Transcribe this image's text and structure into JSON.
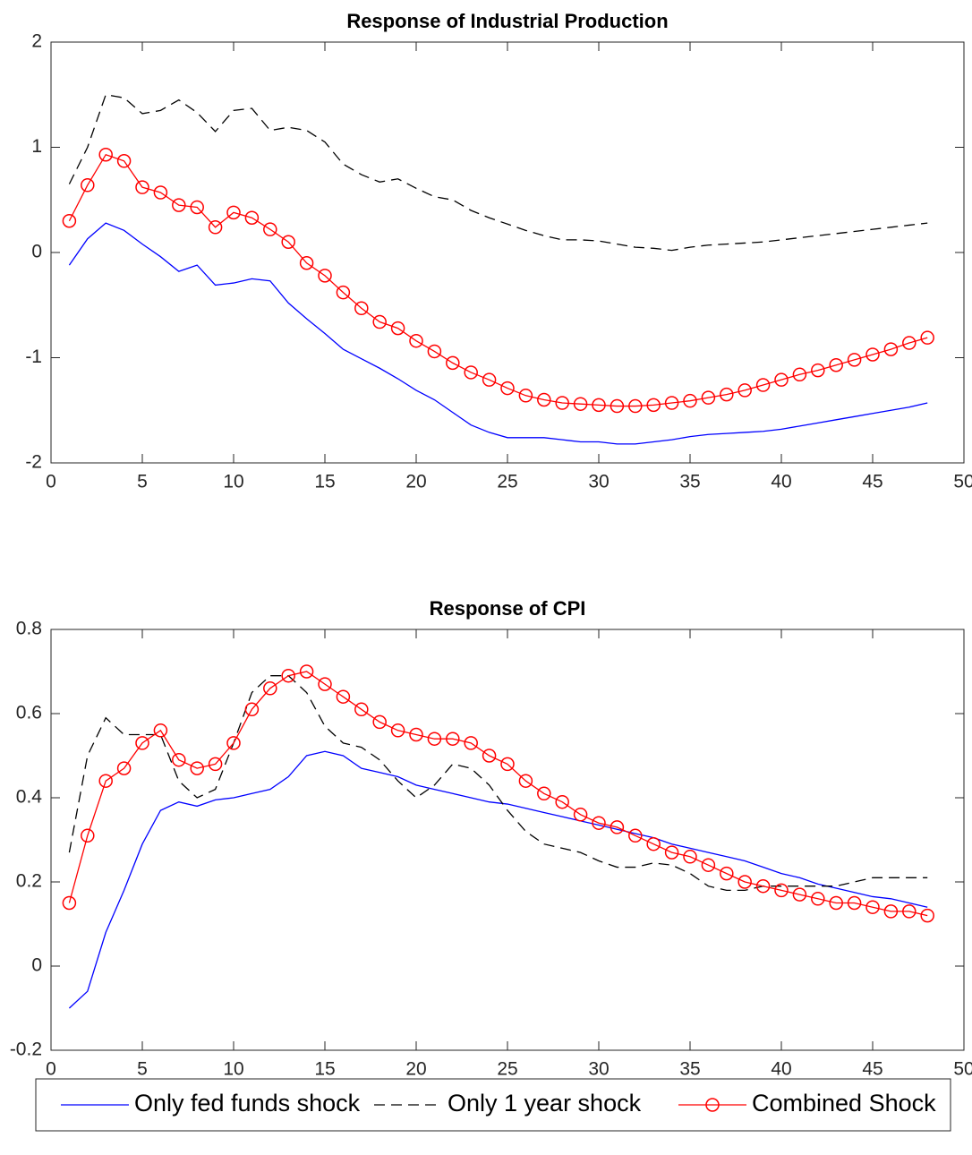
{
  "chart_data": [
    {
      "type": "line",
      "title": "Response of Industrial Production",
      "x": [
        1,
        2,
        3,
        4,
        5,
        6,
        7,
        8,
        9,
        10,
        11,
        12,
        13,
        14,
        15,
        16,
        17,
        18,
        19,
        20,
        21,
        22,
        23,
        24,
        25,
        26,
        27,
        28,
        29,
        30,
        31,
        32,
        33,
        34,
        35,
        36,
        37,
        38,
        39,
        40,
        41,
        42,
        43,
        44,
        45,
        46,
        47,
        48
      ],
      "xlim": [
        0,
        50
      ],
      "xticks": [
        0,
        5,
        10,
        15,
        20,
        25,
        30,
        35,
        40,
        45,
        50
      ],
      "ylim": [
        -2,
        2
      ],
      "yticks": [
        -2,
        -1,
        0,
        1,
        2
      ],
      "series": [
        {
          "name": "Only fed funds shock",
          "color": "#0000ff",
          "line_style": "solid",
          "marker": "none",
          "values": [
            -0.12,
            0.13,
            0.28,
            0.21,
            0.08,
            -0.04,
            -0.18,
            -0.12,
            -0.31,
            -0.29,
            -0.25,
            -0.27,
            -0.48,
            -0.63,
            -0.77,
            -0.92,
            -1.01,
            -1.1,
            -1.2,
            -1.31,
            -1.4,
            -1.52,
            -1.64,
            -1.71,
            -1.76,
            -1.76,
            -1.76,
            -1.78,
            -1.8,
            -1.8,
            -1.82,
            -1.82,
            -1.8,
            -1.78,
            -1.75,
            -1.73,
            -1.72,
            -1.71,
            -1.7,
            -1.68,
            -1.65,
            -1.62,
            -1.59,
            -1.56,
            -1.53,
            -1.5,
            -1.47,
            -1.43
          ]
        },
        {
          "name": "Only 1 year shock",
          "color": "#000000",
          "line_style": "dashed",
          "marker": "none",
          "values": [
            0.65,
            1.0,
            1.5,
            1.47,
            1.32,
            1.35,
            1.45,
            1.33,
            1.15,
            1.35,
            1.37,
            1.16,
            1.19,
            1.16,
            1.05,
            0.84,
            0.74,
            0.67,
            0.7,
            0.61,
            0.53,
            0.5,
            0.4,
            0.33,
            0.27,
            0.21,
            0.16,
            0.12,
            0.12,
            0.11,
            0.08,
            0.05,
            0.04,
            0.02,
            0.05,
            0.07,
            0.08,
            0.09,
            0.1,
            0.12,
            0.14,
            0.16,
            0.18,
            0.2,
            0.22,
            0.24,
            0.26,
            0.28
          ]
        },
        {
          "name": "Combined Shock",
          "color": "#ff0000",
          "line_style": "solid",
          "marker": "circle",
          "values": [
            0.3,
            0.64,
            0.93,
            0.87,
            0.62,
            0.57,
            0.45,
            0.43,
            0.24,
            0.38,
            0.33,
            0.22,
            0.1,
            -0.1,
            -0.22,
            -0.38,
            -0.53,
            -0.66,
            -0.72,
            -0.84,
            -0.94,
            -1.05,
            -1.14,
            -1.21,
            -1.29,
            -1.36,
            -1.4,
            -1.43,
            -1.44,
            -1.45,
            -1.46,
            -1.46,
            -1.45,
            -1.43,
            -1.41,
            -1.38,
            -1.35,
            -1.31,
            -1.26,
            -1.21,
            -1.16,
            -1.12,
            -1.07,
            -1.02,
            -0.97,
            -0.92,
            -0.86,
            -0.81
          ]
        }
      ]
    },
    {
      "type": "line",
      "title": "Response of CPI",
      "x": [
        1,
        2,
        3,
        4,
        5,
        6,
        7,
        8,
        9,
        10,
        11,
        12,
        13,
        14,
        15,
        16,
        17,
        18,
        19,
        20,
        21,
        22,
        23,
        24,
        25,
        26,
        27,
        28,
        29,
        30,
        31,
        32,
        33,
        34,
        35,
        36,
        37,
        38,
        39,
        40,
        41,
        42,
        43,
        44,
        45,
        46,
        47,
        48
      ],
      "xlim": [
        0,
        50
      ],
      "xticks": [
        0,
        5,
        10,
        15,
        20,
        25,
        30,
        35,
        40,
        45,
        50
      ],
      "ylim": [
        -0.2,
        0.8
      ],
      "yticks": [
        -0.2,
        0,
        0.2,
        0.4,
        0.6,
        0.8
      ],
      "series": [
        {
          "name": "Only fed funds shock",
          "color": "#0000ff",
          "line_style": "solid",
          "marker": "none",
          "values": [
            -0.1,
            -0.06,
            0.08,
            0.18,
            0.29,
            0.37,
            0.39,
            0.38,
            0.395,
            0.4,
            0.41,
            0.42,
            0.45,
            0.5,
            0.51,
            0.5,
            0.47,
            0.46,
            0.45,
            0.43,
            0.42,
            0.41,
            0.4,
            0.39,
            0.385,
            0.375,
            0.365,
            0.355,
            0.345,
            0.335,
            0.325,
            0.315,
            0.305,
            0.29,
            0.28,
            0.27,
            0.26,
            0.25,
            0.235,
            0.22,
            0.21,
            0.195,
            0.185,
            0.175,
            0.165,
            0.16,
            0.15,
            0.14
          ]
        },
        {
          "name": "Only 1 year shock",
          "color": "#000000",
          "line_style": "dashed",
          "marker": "none",
          "values": [
            0.27,
            0.5,
            0.59,
            0.55,
            0.55,
            0.55,
            0.44,
            0.4,
            0.42,
            0.53,
            0.65,
            0.69,
            0.69,
            0.65,
            0.57,
            0.53,
            0.52,
            0.49,
            0.44,
            0.4,
            0.43,
            0.48,
            0.47,
            0.43,
            0.37,
            0.32,
            0.29,
            0.28,
            0.27,
            0.25,
            0.235,
            0.235,
            0.245,
            0.24,
            0.22,
            0.19,
            0.18,
            0.18,
            0.19,
            0.19,
            0.19,
            0.19,
            0.19,
            0.2,
            0.21,
            0.21,
            0.21,
            0.21
          ]
        },
        {
          "name": "Combined Shock",
          "color": "#ff0000",
          "line_style": "solid",
          "marker": "circle",
          "values": [
            0.15,
            0.31,
            0.44,
            0.47,
            0.53,
            0.56,
            0.49,
            0.47,
            0.48,
            0.53,
            0.61,
            0.66,
            0.69,
            0.7,
            0.67,
            0.64,
            0.61,
            0.58,
            0.56,
            0.55,
            0.54,
            0.54,
            0.53,
            0.5,
            0.48,
            0.44,
            0.41,
            0.39,
            0.36,
            0.34,
            0.33,
            0.31,
            0.29,
            0.27,
            0.26,
            0.24,
            0.22,
            0.2,
            0.19,
            0.18,
            0.17,
            0.16,
            0.15,
            0.15,
            0.14,
            0.13,
            0.13,
            0.12
          ]
        }
      ]
    }
  ]
}
